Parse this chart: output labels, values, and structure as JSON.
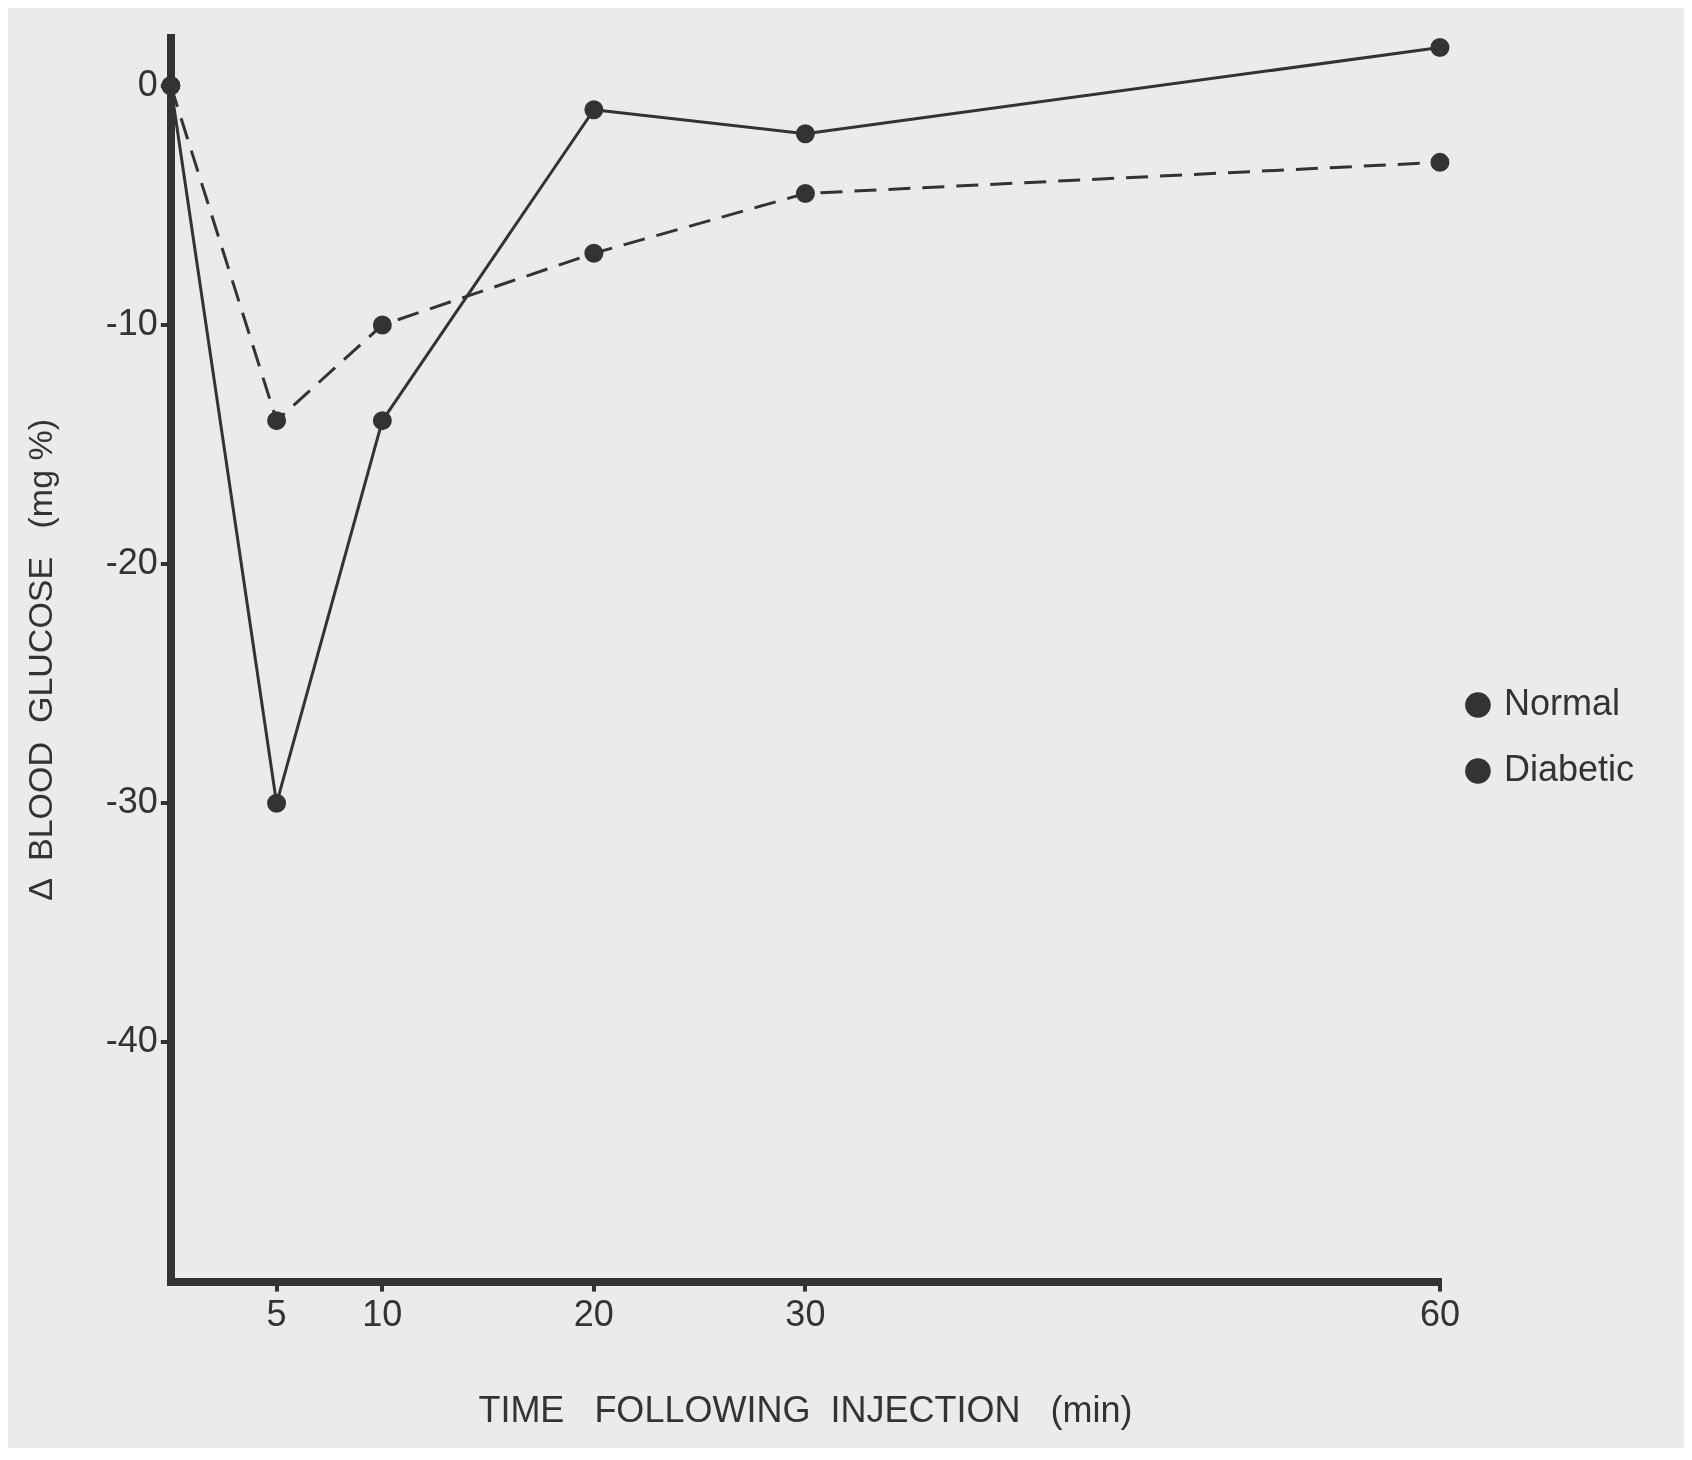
{
  "chart_data": {
    "type": "line",
    "xlabel": "TIME   FOLLOWING  INJECTION   (min)",
    "ylabel": "Δ  BLOOD  GLUCOSE   (mg %)",
    "xlim": [
      0,
      60
    ],
    "xticks": [
      5,
      10,
      20,
      30,
      60
    ],
    "ylim": [
      -50,
      2
    ],
    "yticks": [
      0,
      -10,
      -20,
      -30,
      -40
    ],
    "grid": false,
    "legend": "right",
    "marker": "circle",
    "series": [
      {
        "name": "Normal",
        "color": "#333333",
        "line_style": "solid",
        "x": [
          0,
          5,
          10,
          20,
          30,
          60
        ],
        "values": [
          0,
          -30,
          -14,
          -1,
          -2,
          1.6
        ]
      },
      {
        "name": "Diabetic",
        "color": "#333333",
        "line_style": "dashed",
        "x": [
          0,
          5,
          10,
          20,
          30,
          60
        ],
        "values": [
          0,
          -14,
          -10,
          -7,
          -4.5,
          -3.2
        ]
      }
    ]
  }
}
